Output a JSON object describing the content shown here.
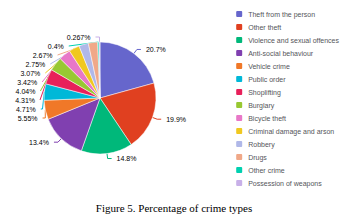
{
  "chart_data": {
    "type": "pie",
    "title": "Figure 5. Percentage of crime types",
    "categories": [
      "Theft from the person",
      "Other theft",
      "Violence and sexual offences",
      "Anti-social behaviour",
      "Vehicle crime",
      "Public order",
      "Shoplifting",
      "Burglary",
      "Bicycle theft",
      "Criminal damage and arson",
      "Robbery",
      "Drugs",
      "Other crime",
      "Possession of weapons"
    ],
    "values": [
      20.7,
      19.9,
      14.8,
      13.4,
      5.55,
      4.71,
      4.31,
      4.04,
      3.42,
      3.07,
      2.75,
      2.67,
      0.4,
      0.267
    ],
    "value_labels": [
      "20.7%",
      "19.9%",
      "14.8%",
      "13.4%",
      "5.55%",
      "4.71%",
      "4.31%",
      "4.04%",
      "3.42%",
      "3.07%",
      "2.75%",
      "2.67%",
      "0.4%",
      "0.267%"
    ],
    "colors": [
      "#6666cc",
      "#e04020",
      "#00b87a",
      "#8040b0",
      "#f07828",
      "#00b8d8",
      "#e8205a",
      "#98c832",
      "#e878c8",
      "#f0c820",
      "#b0b8e8",
      "#f0a888",
      "#00d0b0",
      "#c8b0e8"
    ],
    "data_labels": true,
    "legend": "right"
  }
}
